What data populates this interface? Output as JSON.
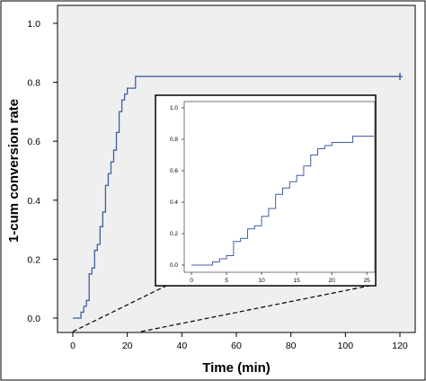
{
  "chart_data": [
    {
      "type": "line",
      "step": true,
      "xlabel": "Time (min)",
      "ylabel": "1-cum conversion rate",
      "xlim": [
        0,
        120
      ],
      "ylim": [
        0,
        1.0
      ],
      "xticks": [
        0,
        20,
        40,
        60,
        80,
        100,
        120
      ],
      "xtick_labels": [
        "0",
        "20",
        "40",
        "60",
        "80",
        "100",
        "120"
      ],
      "yticks": [
        0,
        0.2,
        0.4,
        0.6,
        0.8,
        1.0
      ],
      "ytick_labels": [
        "0.0",
        "0.2",
        "0.4",
        "0.6",
        "0.8",
        "1.0"
      ],
      "background": "#efefef",
      "line_color": "#3f5fa0",
      "grid": false,
      "series": [
        {
          "x": [
            0,
            3,
            4,
            5,
            6,
            7,
            8,
            9,
            10,
            11,
            12,
            13,
            14,
            15,
            16,
            17,
            18,
            19,
            20,
            23,
            121
          ],
          "y": [
            0,
            0.02,
            0.04,
            0.06,
            0.15,
            0.17,
            0.23,
            0.25,
            0.31,
            0.36,
            0.45,
            0.49,
            0.53,
            0.57,
            0.63,
            0.7,
            0.74,
            0.76,
            0.78,
            0.82,
            0.82
          ]
        }
      ],
      "censor_mark_x": 120
    },
    {
      "type": "line",
      "step": true,
      "inset": true,
      "xlim": [
        0,
        26
      ],
      "ylim": [
        0,
        1.0
      ],
      "xticks": [
        0,
        5,
        10,
        15,
        20,
        25
      ],
      "xtick_labels": [
        "0",
        "5",
        "10",
        "15",
        "20",
        "25"
      ],
      "yticks": [
        0,
        0.2,
        0.4,
        0.6,
        0.8,
        1.0
      ],
      "ytick_labels": [
        "0.0",
        "0.2",
        "0.4",
        "0.6",
        "0.8",
        "1.0"
      ],
      "grid": false,
      "series": [
        {
          "x": [
            0,
            3,
            4,
            5,
            6,
            7,
            8,
            9,
            10,
            11,
            12,
            13,
            14,
            15,
            16,
            17,
            18,
            19,
            20,
            23,
            26
          ],
          "y": [
            0,
            0.02,
            0.04,
            0.06,
            0.15,
            0.17,
            0.23,
            0.25,
            0.31,
            0.36,
            0.45,
            0.49,
            0.53,
            0.57,
            0.63,
            0.7,
            0.74,
            0.76,
            0.78,
            0.82,
            0.82
          ]
        }
      ]
    }
  ]
}
